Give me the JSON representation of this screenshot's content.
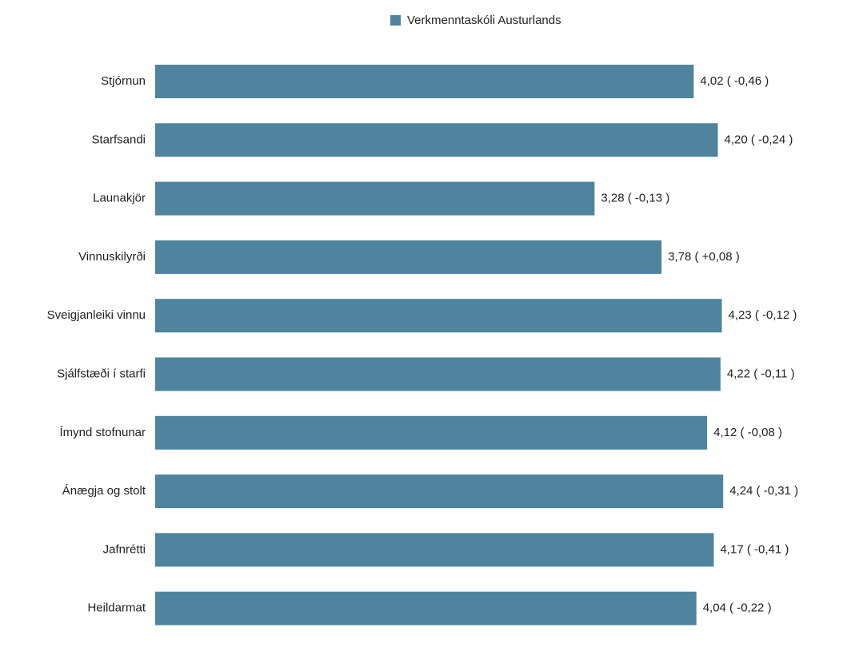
{
  "colors": {
    "bar": "#4e849d",
    "text": "#222222",
    "background": "#ffffff"
  },
  "legend": {
    "label": "Verkmenntaskóli Austurlands",
    "position": "top-center"
  },
  "chart_data": {
    "type": "bar",
    "orientation": "horizontal",
    "title": "",
    "xlabel": "",
    "ylabel": "",
    "xlim": [
      0,
      5
    ],
    "grid": false,
    "series": [
      {
        "name": "Verkmenntaskóli Austurlands"
      }
    ],
    "categories": [
      "Stjórnun",
      "Starfsandi",
      "Launakjör",
      "Vinnuskilyrði",
      "Sveigjanleiki vinnu",
      "Sjálfstæði í starfi",
      "Ímynd stofnunar",
      "Ánægja og stolt",
      "Jafnrétti",
      "Heildarmat"
    ],
    "values": [
      4.02,
      4.2,
      3.28,
      3.78,
      4.23,
      4.22,
      4.12,
      4.24,
      4.17,
      4.04
    ],
    "data_labels": [
      "4,02 ( -0,46 )",
      "4,20 ( -0,24 )",
      "3,28 ( -0,13 )",
      "3,78 ( +0,08 )",
      "4,23 ( -0,12 )",
      "4,22 ( -0,11 )",
      "4,12 ( -0,08 )",
      "4,24 ( -0,31 )",
      "4,17 ( -0,41 )",
      "4,04 ( -0,22 )"
    ]
  }
}
